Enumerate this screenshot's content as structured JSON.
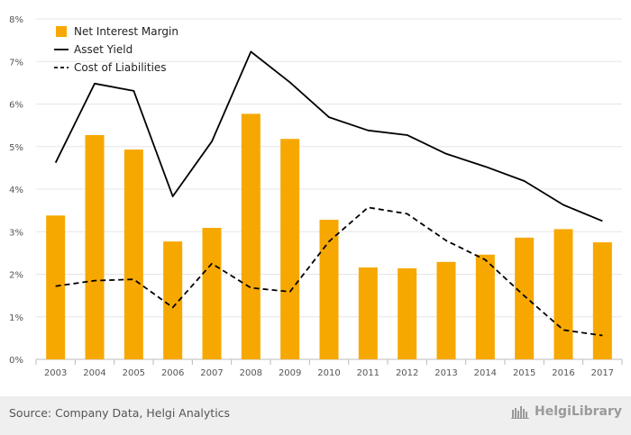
{
  "chart_data": {
    "type": "bar",
    "categories": [
      "2003",
      "2004",
      "2005",
      "2006",
      "2007",
      "2008",
      "2009",
      "2010",
      "2011",
      "2012",
      "2013",
      "2014",
      "2015",
      "2016",
      "2017"
    ],
    "series": [
      {
        "name": "Net Interest Margin",
        "kind": "bar",
        "color": "#F7A800",
        "values": [
          3.38,
          5.27,
          4.93,
          2.77,
          3.09,
          5.77,
          5.18,
          3.28,
          2.16,
          2.14,
          2.29,
          2.46,
          2.86,
          3.06,
          2.75
        ]
      },
      {
        "name": "Asset Yield",
        "kind": "line",
        "style": "solid",
        "color": "#000000",
        "values": [
          4.62,
          6.48,
          6.31,
          3.83,
          5.12,
          7.23,
          6.51,
          5.69,
          5.38,
          5.27,
          4.83,
          4.53,
          4.19,
          3.63,
          3.25
        ]
      },
      {
        "name": "Cost of Liabilities",
        "kind": "line",
        "style": "dashed",
        "color": "#000000",
        "values": [
          1.72,
          1.85,
          1.88,
          1.22,
          2.25,
          1.68,
          1.59,
          2.77,
          3.57,
          3.42,
          2.79,
          2.34,
          1.49,
          0.69,
          0.56
        ]
      }
    ],
    "y_ticks": [
      "0%",
      "1%",
      "2%",
      "3%",
      "4%",
      "5%",
      "6%",
      "7%",
      "8%"
    ],
    "ylim": [
      0,
      8
    ],
    "grid": true,
    "legend_position": "top-left"
  },
  "footer": {
    "source": "Source: Company Data, Helgi Analytics",
    "brand": "HelgiLibrary"
  }
}
